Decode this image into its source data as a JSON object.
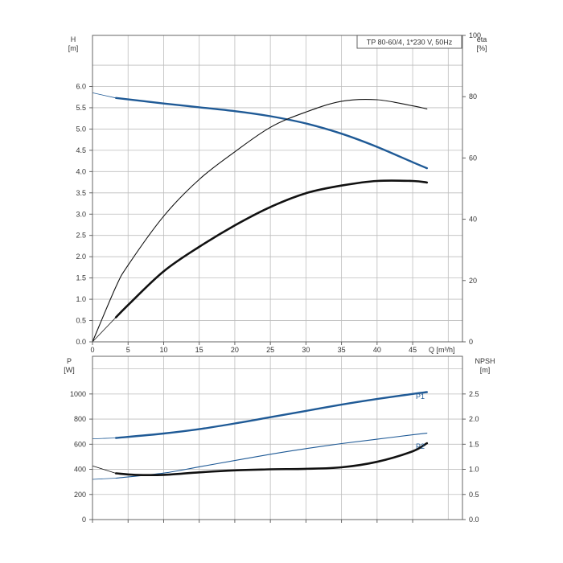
{
  "chart_data": [
    {
      "type": "line",
      "title": "TP 80-60/4, 1*230 V, 50Hz",
      "xlabel": "Q [m³/h]",
      "x_ticks": [
        "0",
        "5",
        "10",
        "15",
        "20",
        "25",
        "30",
        "35",
        "40",
        "45"
      ],
      "xlim": [
        0,
        52
      ],
      "left_axis": {
        "label": "H",
        "unit": "[m]",
        "ylim": [
          0,
          7.2
        ],
        "ticks": [
          "0.0",
          "0.5",
          "1.0",
          "1.5",
          "2.0",
          "2.5",
          "3.0",
          "3.5",
          "4.0",
          "4.5",
          "5.0",
          "5.5",
          "6.0"
        ]
      },
      "right_axis": {
        "label": "eta",
        "unit": "[%]",
        "ylim": [
          0,
          100
        ],
        "ticks": [
          "0",
          "20",
          "40",
          "60",
          "80",
          "100"
        ]
      },
      "grid": true,
      "series": [
        {
          "axis": "left",
          "color": "#1f5a96",
          "x": [
            3.3,
            10,
            15,
            20,
            25,
            30,
            35,
            40,
            45,
            47
          ],
          "y": [
            5.73,
            5.6,
            5.51,
            5.42,
            5.3,
            5.13,
            4.89,
            4.58,
            4.22,
            4.08
          ],
          "extension": {
            "x": [
              0,
              3.3
            ],
            "y": [
              5.85,
              5.73
            ]
          }
        },
        {
          "axis": "right",
          "color": "#111111",
          "width": "thin",
          "x": [
            0,
            3.3,
            5,
            10,
            15,
            20,
            25,
            30,
            35,
            40,
            45,
            47
          ],
          "y": [
            0,
            18,
            25,
            41,
            53,
            62,
            70,
            75,
            78.5,
            79,
            77,
            76
          ]
        },
        {
          "axis": "right",
          "color": "#111111",
          "width": "thick",
          "x": [
            3.3,
            5,
            10,
            15,
            20,
            25,
            30,
            35,
            40,
            45,
            47
          ],
          "y": [
            8,
            12,
            23,
            31,
            38,
            44,
            48.5,
            51,
            52.5,
            52.5,
            52
          ],
          "extension": {
            "x": [
              0,
              3.3
            ],
            "y": [
              0,
              8
            ]
          }
        }
      ]
    },
    {
      "type": "line",
      "xlim": [
        0,
        52
      ],
      "left_axis": {
        "label": "P",
        "unit": "[W]",
        "ylim": [
          0,
          1300
        ],
        "ticks": [
          "0",
          "200",
          "400",
          "600",
          "800",
          "1000"
        ]
      },
      "right_axis": {
        "label": "NPSH",
        "unit": "[m]",
        "ylim": [
          0,
          3.25
        ],
        "ticks": [
          "0.0",
          "0.5",
          "1.0",
          "1.5",
          "2.0",
          "2.5"
        ]
      },
      "grid": true,
      "series": [
        {
          "name": "P1",
          "axis": "left",
          "color": "#1f5a96",
          "x": [
            3.3,
            10,
            15,
            20,
            25,
            30,
            35,
            40,
            45,
            47
          ],
          "y": [
            650,
            685,
            720,
            765,
            815,
            865,
            915,
            960,
            1000,
            1015
          ],
          "extension": {
            "x": [
              0,
              3.3
            ],
            "y": [
              643,
              650
            ]
          }
        },
        {
          "name": "P2",
          "axis": "left",
          "color": "#1f5a96",
          "width": "thin",
          "x": [
            3.3,
            10,
            15,
            20,
            25,
            30,
            35,
            40,
            45,
            47
          ],
          "y": [
            330,
            370,
            420,
            470,
            520,
            565,
            605,
            640,
            675,
            688
          ],
          "extension": {
            "x": [
              0,
              3.3
            ],
            "y": [
              320,
              330
            ]
          }
        },
        {
          "name": "",
          "axis": "right",
          "color": "#111111",
          "width": "thick",
          "x": [
            3.3,
            6,
            10,
            15,
            20,
            25,
            30,
            35,
            40,
            45,
            47
          ],
          "y": [
            0.92,
            0.89,
            0.89,
            0.94,
            0.98,
            1.0,
            1.01,
            1.04,
            1.15,
            1.36,
            1.52
          ],
          "extension": {
            "x": [
              0,
              3.3
            ],
            "y": [
              1.07,
              0.92
            ]
          }
        }
      ]
    }
  ]
}
